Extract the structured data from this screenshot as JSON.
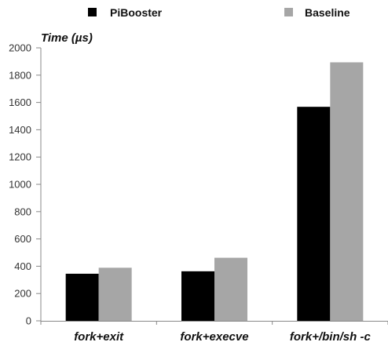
{
  "chart_data": {
    "type": "bar",
    "title": "",
    "xlabel": "",
    "ylabel": "Time (µs)",
    "ylim": [
      0,
      2000
    ],
    "yticks": [
      0,
      200,
      400,
      600,
      800,
      1000,
      1200,
      1400,
      1600,
      1800,
      2000
    ],
    "grid": false,
    "legend_position": "top",
    "categories": [
      "fork+exit",
      "fork+execve",
      "fork+/bin/sh -c"
    ],
    "series": [
      {
        "name": "PiBooster",
        "color": "#000000",
        "values": [
          345,
          363,
          1568
        ]
      },
      {
        "name": "Baseline",
        "color": "#a6a6a6",
        "values": [
          389,
          462,
          1894
        ]
      }
    ]
  }
}
